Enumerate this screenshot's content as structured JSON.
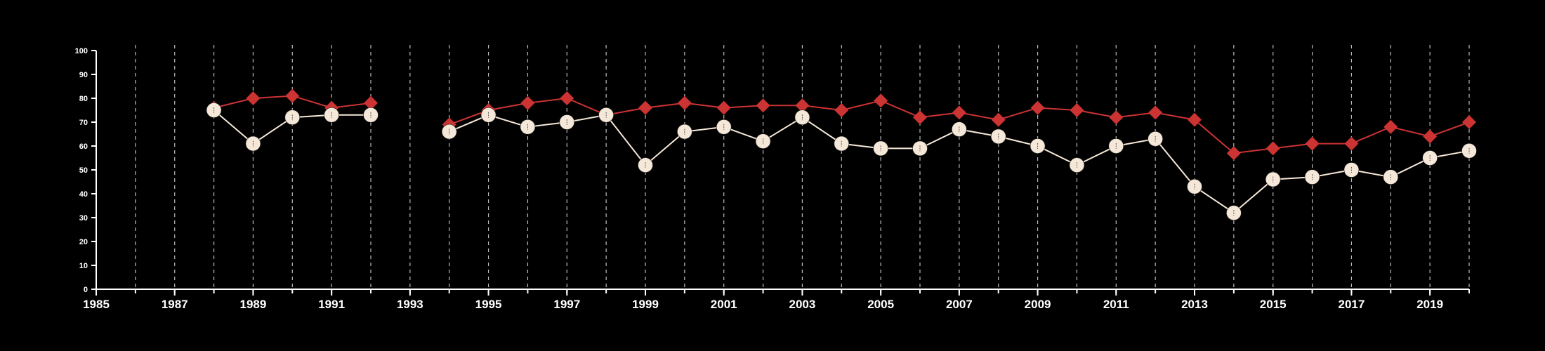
{
  "chart_data": {
    "type": "line",
    "title": "",
    "xlabel": "",
    "ylabel": "",
    "xlim": [
      1985,
      2020
    ],
    "ylim": [
      0,
      100
    ],
    "x_ticks": [
      1985,
      1987,
      1989,
      1991,
      1993,
      1995,
      1997,
      1999,
      2001,
      2003,
      2005,
      2007,
      2009,
      2011,
      2013,
      2015,
      2017,
      2019
    ],
    "x_tick_labels": [
      "1985",
      "1987",
      "1989",
      "1991",
      "1993",
      "1995",
      "1997",
      "1999",
      "2001",
      "2003",
      "2005",
      "2007",
      "2009",
      "2011",
      "2013",
      "2015",
      "2017",
      "2019"
    ],
    "y_ticks": [
      0,
      10,
      20,
      30,
      40,
      50,
      60,
      70,
      80,
      90,
      100
    ],
    "y_tick_labels": [
      "0",
      "10",
      "20",
      "30",
      "40",
      "50",
      "60",
      "70",
      "80",
      "90",
      "100"
    ],
    "grid": "vertical dashed lines at each year",
    "legend": "none",
    "series": [
      {
        "marker": "diamond",
        "color": "#cc3333",
        "points": [
          {
            "x": 1988,
            "y": 76
          },
          {
            "x": 1989,
            "y": 80
          },
          {
            "x": 1990,
            "y": 81
          },
          {
            "x": 1991,
            "y": 76
          },
          {
            "x": 1992,
            "y": 78
          },
          {
            "x": 1994,
            "y": 69
          },
          {
            "x": 1995,
            "y": 75
          },
          {
            "x": 1996,
            "y": 78
          },
          {
            "x": 1997,
            "y": 80
          },
          {
            "x": 1998,
            "y": 73
          },
          {
            "x": 1999,
            "y": 76
          },
          {
            "x": 2000,
            "y": 78
          },
          {
            "x": 2001,
            "y": 76
          },
          {
            "x": 2002,
            "y": 77
          },
          {
            "x": 2003,
            "y": 77
          },
          {
            "x": 2004,
            "y": 75
          },
          {
            "x": 2005,
            "y": 79
          },
          {
            "x": 2006,
            "y": 72
          },
          {
            "x": 2007,
            "y": 74
          },
          {
            "x": 2008,
            "y": 71
          },
          {
            "x": 2009,
            "y": 76
          },
          {
            "x": 2010,
            "y": 75
          },
          {
            "x": 2011,
            "y": 72
          },
          {
            "x": 2012,
            "y": 74
          },
          {
            "x": 2013,
            "y": 71
          },
          {
            "x": 2014,
            "y": 57
          },
          {
            "x": 2015,
            "y": 59
          },
          {
            "x": 2016,
            "y": 61
          },
          {
            "x": 2017,
            "y": 61
          },
          {
            "x": 2018,
            "y": 68
          },
          {
            "x": 2019,
            "y": 64
          },
          {
            "x": 2020,
            "y": 70
          }
        ]
      },
      {
        "marker": "circle",
        "color": "#f5e8d8",
        "points": [
          {
            "x": 1988,
            "y": 75
          },
          {
            "x": 1989,
            "y": 61
          },
          {
            "x": 1990,
            "y": 72
          },
          {
            "x": 1991,
            "y": 73
          },
          {
            "x": 1992,
            "y": 73
          },
          {
            "x": 1994,
            "y": 66
          },
          {
            "x": 1995,
            "y": 73
          },
          {
            "x": 1996,
            "y": 68
          },
          {
            "x": 1997,
            "y": 70
          },
          {
            "x": 1998,
            "y": 73
          },
          {
            "x": 1999,
            "y": 52
          },
          {
            "x": 2000,
            "y": 66
          },
          {
            "x": 2001,
            "y": 68
          },
          {
            "x": 2002,
            "y": 62
          },
          {
            "x": 2003,
            "y": 72
          },
          {
            "x": 2004,
            "y": 61
          },
          {
            "x": 2005,
            "y": 59
          },
          {
            "x": 2006,
            "y": 59
          },
          {
            "x": 2007,
            "y": 67
          },
          {
            "x": 2008,
            "y": 64
          },
          {
            "x": 2009,
            "y": 60
          },
          {
            "x": 2010,
            "y": 52
          },
          {
            "x": 2011,
            "y": 60
          },
          {
            "x": 2012,
            "y": 63
          },
          {
            "x": 2013,
            "y": 43
          },
          {
            "x": 2014,
            "y": 32
          },
          {
            "x": 2015,
            "y": 46
          },
          {
            "x": 2016,
            "y": 47
          },
          {
            "x": 2017,
            "y": 50
          },
          {
            "x": 2018,
            "y": 47
          },
          {
            "x": 2019,
            "y": 55
          },
          {
            "x": 2020,
            "y": 58
          }
        ]
      }
    ]
  }
}
